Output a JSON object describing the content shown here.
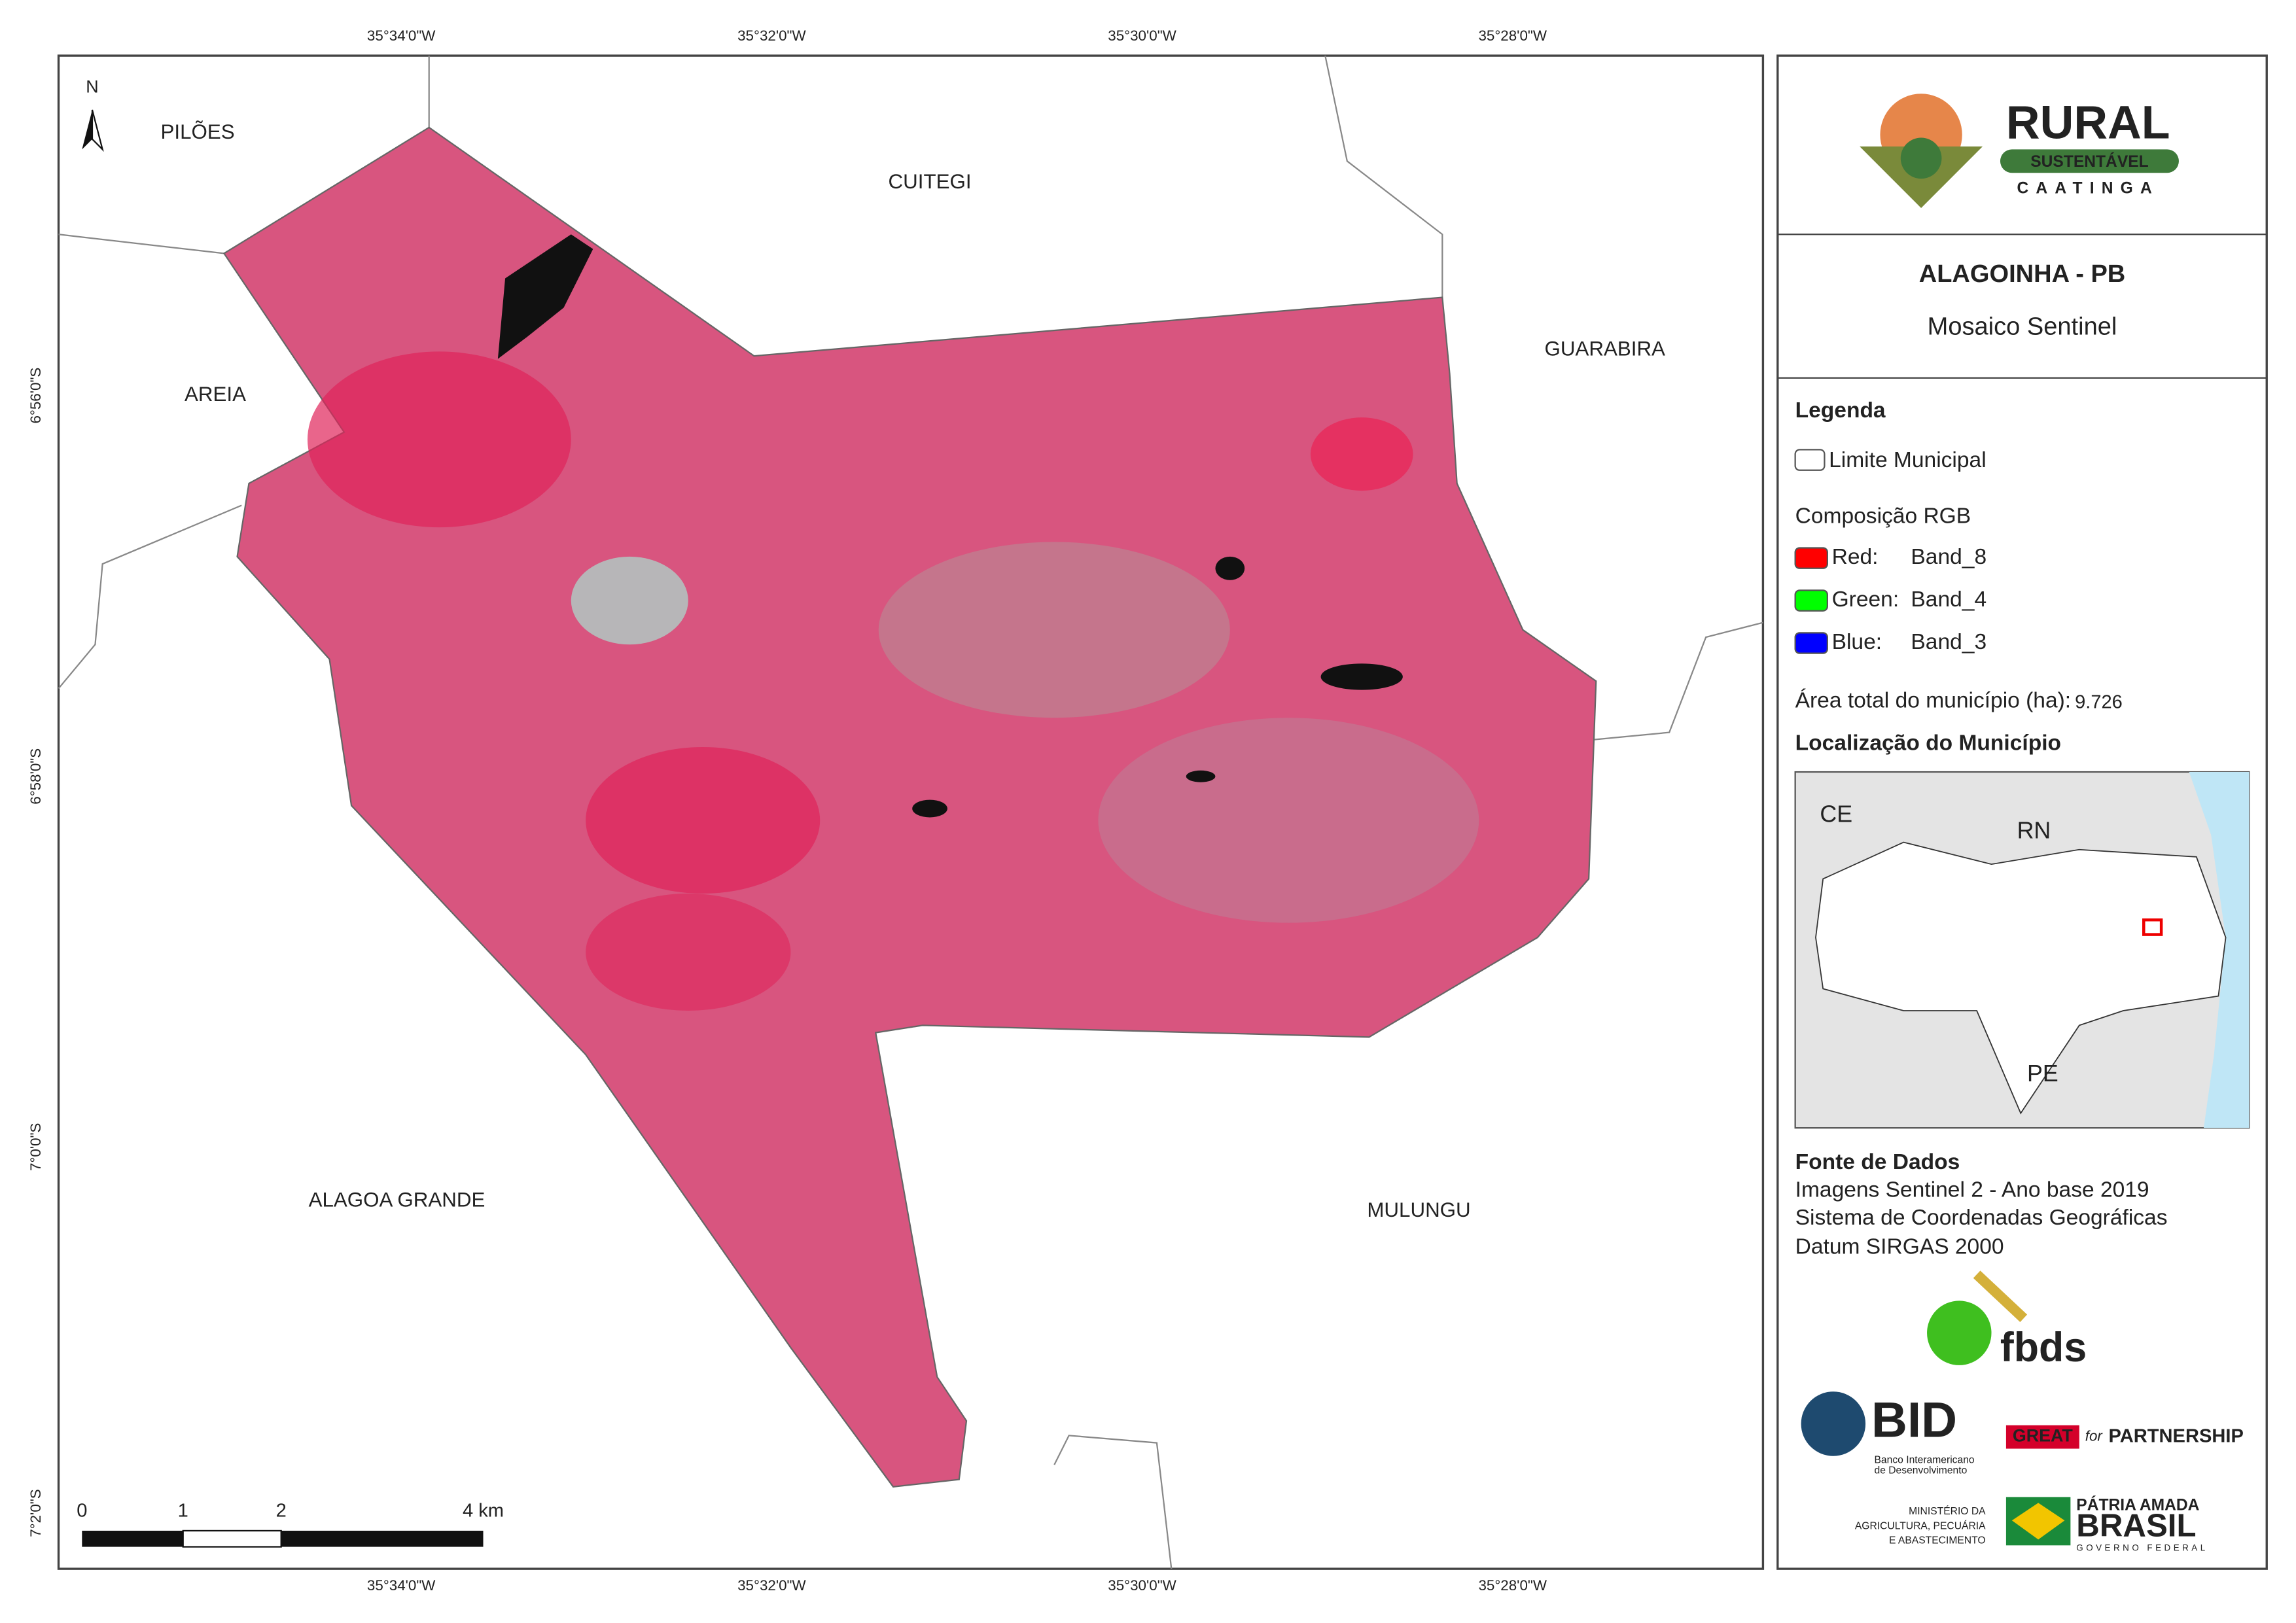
{
  "map": {
    "coordinates": {
      "top": [
        "35°34'0\"W",
        "35°32'0\"W",
        "35°30'0\"W",
        "35°28'0\"W"
      ],
      "bottom": [
        "35°34'0\"W",
        "35°32'0\"W",
        "35°30'0\"W",
        "35°28'0\"W"
      ],
      "left": [
        "6°56'0\"S",
        "6°58'0\"S",
        "7°0'0\"S",
        "7°2'0\"S"
      ]
    },
    "north": "N",
    "places": [
      "PILÕES",
      "CUITEGI",
      "AREIA",
      "GUARABIRA",
      "ALAGOA GRANDE",
      "MULUNGU"
    ],
    "scale_bar": {
      "labels": [
        "0",
        "1",
        "2",
        "4 km"
      ]
    }
  },
  "panel": {
    "logo": {
      "name": "RURAL",
      "sub": "SUSTENTÁVEL",
      "region": "CAATINGA"
    },
    "title": "ALAGOINHA - PB",
    "subtitle": "Mosaico Sentinel",
    "legend": {
      "title": "Legenda",
      "boundary": "Limite Municipal",
      "composition": "Composição RGB",
      "bands": [
        {
          "channel": "Red:",
          "band": "Band_8",
          "color": "#ff0000"
        },
        {
          "channel": "Green:",
          "band": "Band_4",
          "color": "#00ff00"
        },
        {
          "channel": "Blue:",
          "band": "Band_3",
          "color": "#0000ff"
        }
      ],
      "area_label": "Área total do município (ha):",
      "area_value": "9.726"
    },
    "location": {
      "title": "Localização do Município",
      "labels": [
        "CE",
        "RN",
        "PE"
      ]
    },
    "sources": {
      "title": "Fonte de Dados",
      "lines": [
        "Imagens Sentinel 2 - Ano base 2019",
        "Sistema de Coordenadas Geográficas",
        "Datum SIRGAS 2000"
      ]
    },
    "partners": {
      "fbds": "fbds",
      "bid": "BID",
      "bid_lines": [
        "Banco Interamericano",
        "de Desenvolvimento"
      ],
      "great": "GREAT",
      "great_for": "for",
      "great_partner": "PARTNERSHIP",
      "ministry": [
        "MINISTÉRIO DA",
        "AGRICULTURA, PECUÁRIA",
        "E ABASTECIMENTO"
      ],
      "brasil_top": "PÁTRIA AMADA",
      "brasil": "BRASIL",
      "brasil_gov": "GOVERNO FEDERAL"
    }
  }
}
